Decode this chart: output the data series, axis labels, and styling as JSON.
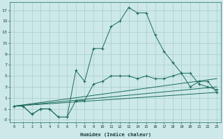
{
  "xlabel": "Humidex (Indice chaleur)",
  "bg_color": "#cce8e8",
  "grid_color": "#aacccc",
  "line_color": "#1a6b5a",
  "xlim": [
    -0.5,
    23.5
  ],
  "ylim": [
    -3.5,
    18.5
  ],
  "xticks": [
    0,
    1,
    2,
    3,
    4,
    5,
    6,
    7,
    8,
    9,
    10,
    11,
    12,
    13,
    14,
    15,
    16,
    17,
    18,
    19,
    20,
    21,
    22,
    23
  ],
  "yticks": [
    -3,
    -1,
    1,
    3,
    5,
    7,
    9,
    11,
    13,
    15,
    17
  ],
  "line1_x": [
    0,
    1,
    2,
    3,
    4,
    5,
    6,
    7,
    8,
    9,
    10,
    11,
    12,
    13,
    14,
    15,
    16,
    17,
    18,
    19,
    20,
    21,
    22,
    23
  ],
  "line1_y": [
    -0.5,
    -0.5,
    -2.0,
    -1.0,
    -1.0,
    -2.5,
    -2.5,
    6.0,
    4.0,
    10.0,
    10.0,
    14.0,
    15.0,
    17.5,
    16.5,
    16.5,
    12.5,
    9.5,
    7.5,
    5.5,
    3.0,
    4.0,
    4.0,
    2.0
  ],
  "line2_x": [
    0,
    1,
    2,
    3,
    4,
    5,
    6,
    7,
    8,
    9,
    10,
    11,
    12,
    13,
    14,
    15,
    16,
    17,
    18,
    19,
    20,
    21,
    22,
    23
  ],
  "line2_y": [
    -0.5,
    -0.5,
    -2.0,
    -1.0,
    -1.0,
    -2.5,
    -2.5,
    0.5,
    0.5,
    3.5,
    4.0,
    5.0,
    5.0,
    5.0,
    4.5,
    5.0,
    4.5,
    4.5,
    5.0,
    5.5,
    5.5,
    3.5,
    3.0,
    2.5
  ],
  "line3_x": [
    0,
    23
  ],
  "line3_y": [
    -0.5,
    4.5
  ],
  "line4_x": [
    0,
    23
  ],
  "line4_y": [
    -0.5,
    3.0
  ],
  "line5_x": [
    0,
    23
  ],
  "line5_y": [
    -0.5,
    2.0
  ]
}
